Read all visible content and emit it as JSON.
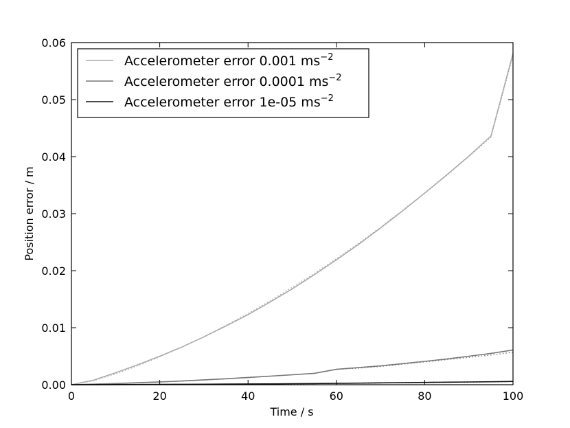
{
  "chart_data": {
    "type": "line",
    "xlabel": "Time / s",
    "ylabel": "Position error / m",
    "xlim": [
      0,
      100
    ],
    "ylim": [
      0,
      0.06
    ],
    "x_ticks": [
      "0",
      "20",
      "40",
      "60",
      "80",
      "100"
    ],
    "y_ticks": [
      "0.00",
      "0.01",
      "0.02",
      "0.03",
      "0.04",
      "0.05",
      "0.06"
    ],
    "grid": false,
    "legend_position": "top-left",
    "legend_unit": "ms",
    "legend_unit_exponent": "−2",
    "x": [
      0,
      5,
      10,
      15,
      20,
      25,
      30,
      35,
      40,
      45,
      50,
      55,
      60,
      65,
      70,
      75,
      80,
      85,
      90,
      95,
      100
    ],
    "series": [
      {
        "name": "Accelerometer error 0.001",
        "color": "#aaaaaa",
        "values": [
          0,
          0.0008,
          0.0021,
          0.0035,
          0.005,
          0.0066,
          0.0084,
          0.0103,
          0.0123,
          0.0145,
          0.0168,
          0.0193,
          0.0219,
          0.0246,
          0.0275,
          0.0305,
          0.0336,
          0.0368,
          0.0401,
          0.0436,
          0.0581
        ],
        "fit_values": [
          0,
          0.0007,
          0.0019,
          0.0033,
          0.0049,
          0.0066,
          0.0084,
          0.0104,
          0.0125,
          0.0147,
          0.0171,
          0.0195,
          0.0221,
          0.0248,
          0.0276,
          0.0306,
          0.0336,
          0.0367,
          0.04,
          0.0434,
          0.0577
        ]
      },
      {
        "name": "Accelerometer error 0.0001",
        "color": "#777777",
        "values": [
          0,
          0.0001,
          0.0002,
          0.00035,
          0.0005,
          0.00065,
          0.00085,
          0.00105,
          0.00128,
          0.0015,
          0.00175,
          0.002,
          0.0027,
          0.003,
          0.0033,
          0.0037,
          0.0041,
          0.0045,
          0.005,
          0.0055,
          0.0061
        ],
        "fit_values": [
          0,
          0.0001,
          0.0002,
          0.00033,
          0.00048,
          0.00064,
          0.00082,
          0.00102,
          0.00124,
          0.00148,
          0.00172,
          0.00198,
          0.0027,
          0.0029,
          0.0032,
          0.0036,
          0.004,
          0.0044,
          0.0048,
          0.0052,
          0.0057
        ]
      },
      {
        "name": "Accelerometer error 1e-05",
        "color": "#111111",
        "values": [
          0,
          1e-05,
          2e-05,
          4e-05,
          5e-05,
          7e-05,
          9e-05,
          0.00011,
          0.00013,
          0.00015,
          0.00018,
          0.0002,
          0.00025,
          0.00028,
          0.00032,
          0.00036,
          0.0004,
          0.00044,
          0.00048,
          0.00052,
          0.00058
        ],
        "fit_values": [
          0,
          1e-05,
          2e-05,
          3e-05,
          5e-05,
          6e-05,
          8e-05,
          0.0001,
          0.00012,
          0.00014,
          0.00017,
          0.00019,
          0.00024,
          0.00027,
          0.00031,
          0.00035,
          0.00039,
          0.00043,
          0.00047,
          0.00051,
          0.00056
        ]
      }
    ]
  }
}
